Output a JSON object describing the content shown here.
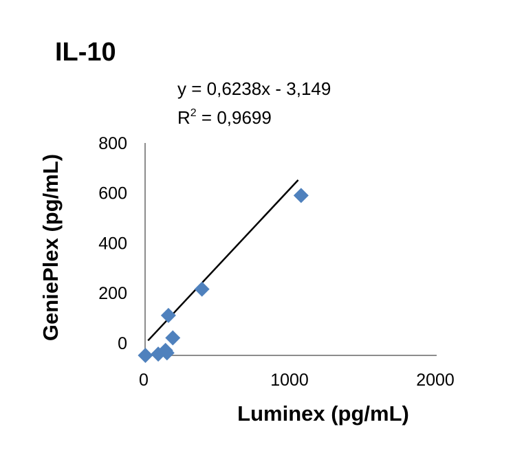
{
  "chart_data": {
    "type": "scatter",
    "title": "IL-10",
    "xlabel": "Luminex  (pg/mL)",
    "ylabel": "GeniePlex  (pg/mL)",
    "xlim": [
      0,
      2000
    ],
    "ylim": [
      -50,
      800
    ],
    "x_ticks": [
      "0",
      "1000",
      "2000"
    ],
    "y_ticks": [
      "0",
      "200",
      "400",
      "600",
      "800"
    ],
    "x_tick_values": [
      0,
      1000,
      2000
    ],
    "y_tick_values": [
      0,
      200,
      400,
      600,
      800
    ],
    "marker_color": "#4f81bd",
    "grid": false,
    "legend": "none",
    "series": [
      {
        "points": [
          {
            "x": 2,
            "y": -50
          },
          {
            "x": 90,
            "y": -45
          },
          {
            "x": 140,
            "y": -30
          },
          {
            "x": 150,
            "y": -40
          },
          {
            "x": 160,
            "y": 110
          },
          {
            "x": 190,
            "y": 20
          },
          {
            "x": 390,
            "y": 215
          },
          {
            "x": 1070,
            "y": 590
          }
        ]
      }
    ],
    "trendline": {
      "slope": 0.6238,
      "intercept": -3.149,
      "x_range": [
        20,
        1050
      ],
      "equation": "y = 0,6238x - 3,149",
      "r2_prefix": "R",
      "r2_sup": "2",
      "r2_value": " = 0,9699"
    }
  }
}
